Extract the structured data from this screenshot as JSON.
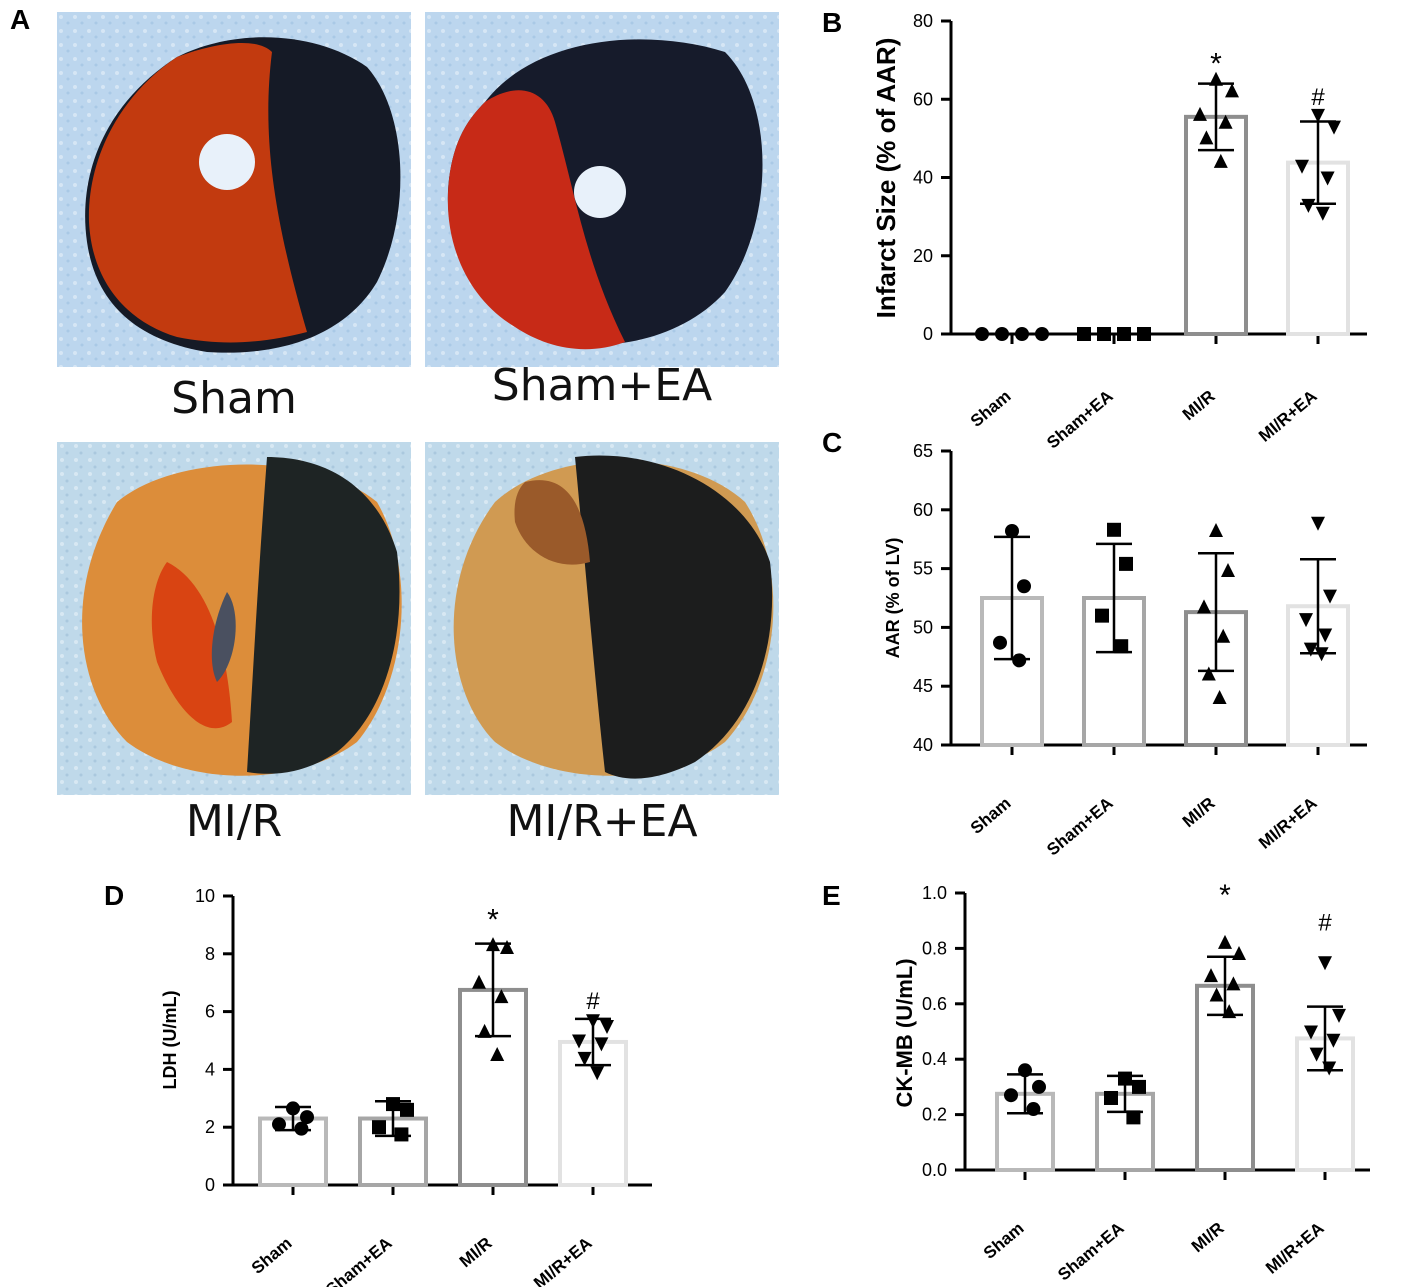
{
  "panel_a": {
    "letter": "A",
    "photos": [
      {
        "label": "Sham"
      },
      {
        "label": "Sham+EA"
      },
      {
        "label": "MI/R"
      },
      {
        "label": "MI/R+EA"
      }
    ]
  },
  "colors": {
    "bar_strokes": [
      "#b9b9b9",
      "#a6a6a6",
      "#8e8e8e",
      "#e2e2e2"
    ],
    "markers": "#000000"
  },
  "chart_data": [
    {
      "id": "B",
      "letter": "B",
      "type": "bar",
      "categories": [
        "Sham",
        "Sham+EA",
        "MI/R",
        "MI/R+EA"
      ],
      "values": [
        0,
        0,
        55.5,
        43.8
      ],
      "errors": [
        0,
        0,
        8.5,
        10.5
      ],
      "points": [
        [
          0,
          0,
          0,
          0
        ],
        [
          0,
          0,
          0,
          0
        ],
        [
          65,
          62,
          56,
          54,
          50,
          44
        ],
        [
          56,
          53,
          43,
          40,
          33,
          31
        ]
      ],
      "markers": [
        "circle",
        "square",
        "triangle-up",
        "triangle-down"
      ],
      "ylabel": "Infarct Size  (% of AAR)",
      "ylim": [
        0,
        80
      ],
      "yticks": [
        0,
        20,
        40,
        60,
        80
      ],
      "significance": [
        "",
        "",
        "*",
        "#"
      ]
    },
    {
      "id": "C",
      "letter": "C",
      "type": "bar",
      "categories": [
        "Sham",
        "Sham+EA",
        "MI/R",
        "MI/R+EA"
      ],
      "values": [
        52.5,
        52.5,
        51.3,
        51.8
      ],
      "errors": [
        5.2,
        4.6,
        5.0,
        4.0
      ],
      "points": [
        [
          58.2,
          53.5,
          48.7,
          47.2
        ],
        [
          58.3,
          55.4,
          51.0,
          48.4
        ],
        [
          58.2,
          54.8,
          51.7,
          49.2,
          46.0,
          44.0
        ],
        [
          58.9,
          52.7,
          50.7,
          49.4,
          48.2,
          47.8
        ]
      ],
      "markers": [
        "circle",
        "square",
        "triangle-up",
        "triangle-down"
      ],
      "ylabel": "AAR (% of LV)",
      "ylim": [
        40,
        65
      ],
      "yticks": [
        40,
        45,
        50,
        55,
        60,
        65
      ],
      "significance": [
        "",
        "",
        "",
        ""
      ]
    },
    {
      "id": "D",
      "letter": "D",
      "type": "bar",
      "categories": [
        "Sham",
        "Sham+EA",
        "MI/R",
        "MI/R+EA"
      ],
      "values": [
        2.3,
        2.3,
        6.75,
        4.95
      ],
      "errors": [
        0.4,
        0.6,
        1.6,
        0.8
      ],
      "points": [
        [
          2.65,
          2.35,
          2.1,
          1.95
        ],
        [
          2.8,
          2.6,
          2.0,
          1.75
        ],
        [
          8.3,
          8.2,
          7.0,
          6.5,
          5.3,
          4.5
        ],
        [
          5.7,
          5.5,
          5.0,
          4.9,
          4.4,
          3.9
        ]
      ],
      "markers": [
        "circle",
        "square",
        "triangle-up",
        "triangle-down"
      ],
      "ylabel": "LDH (U/mL)",
      "ylim": [
        0,
        10
      ],
      "yticks": [
        0,
        2,
        4,
        6,
        8,
        10
      ],
      "significance": [
        "",
        "",
        "*",
        "#"
      ]
    },
    {
      "id": "E",
      "letter": "E",
      "type": "bar",
      "categories": [
        "Sham",
        "Sham+EA",
        "MI/R",
        "MI/R+EA"
      ],
      "values": [
        0.275,
        0.275,
        0.665,
        0.475
      ],
      "errors": [
        0.07,
        0.065,
        0.105,
        0.115
      ],
      "points": [
        [
          0.36,
          0.3,
          0.27,
          0.22
        ],
        [
          0.33,
          0.3,
          0.26,
          0.19
        ],
        [
          0.82,
          0.78,
          0.7,
          0.67,
          0.63,
          0.57
        ],
        [
          0.75,
          0.56,
          0.5,
          0.47,
          0.42,
          0.37
        ]
      ],
      "markers": [
        "circle",
        "square",
        "triangle-up",
        "triangle-down"
      ],
      "ylabel": "CK-MB (U/mL)",
      "ylim": [
        0,
        1.0
      ],
      "yticks": [
        "0.0",
        "0.2",
        "0.4",
        "0.6",
        "0.8",
        "1.0"
      ],
      "significance": [
        "",
        "",
        "*",
        "#"
      ]
    }
  ]
}
